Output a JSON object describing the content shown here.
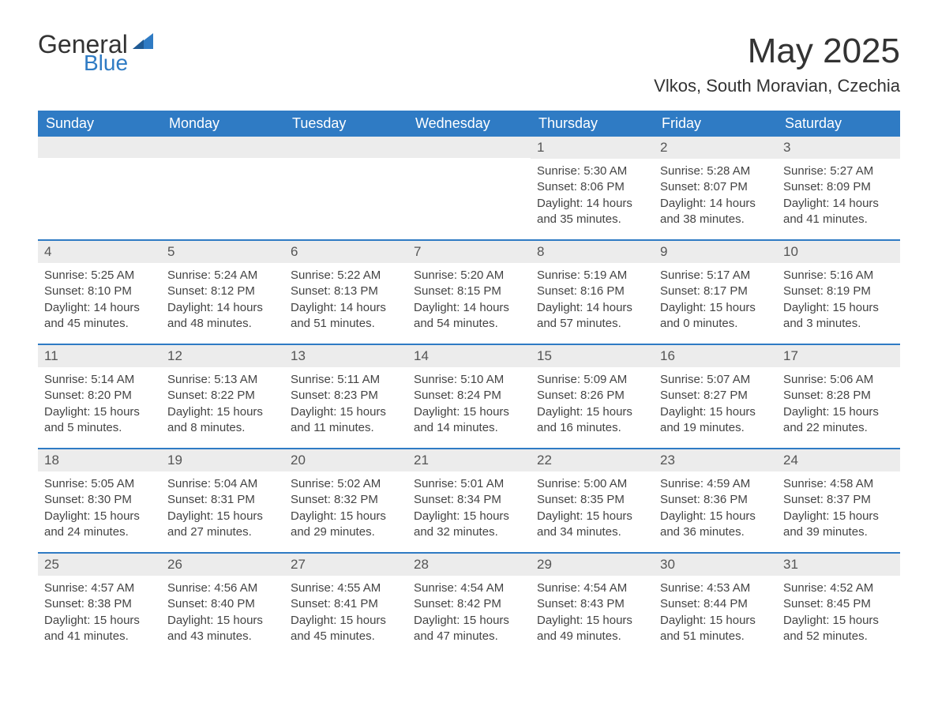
{
  "brand": {
    "word1": "General",
    "word2": "Blue",
    "color_primary": "#2f7bc4",
    "color_text": "#333333"
  },
  "title": "May 2025",
  "location": "Vlkos, South Moravian, Czechia",
  "colors": {
    "header_bg": "#2f7bc4",
    "header_text": "#ffffff",
    "daynum_bg": "#ececec",
    "border": "#2f7bc4",
    "body_text": "#444444",
    "background": "#ffffff"
  },
  "fonts": {
    "title_size_pt": 44,
    "location_size_pt": 22,
    "dayheader_size_pt": 18,
    "daynum_size_pt": 17,
    "detail_size_pt": 15
  },
  "day_names": [
    "Sunday",
    "Monday",
    "Tuesday",
    "Wednesday",
    "Thursday",
    "Friday",
    "Saturday"
  ],
  "weeks": [
    [
      null,
      null,
      null,
      null,
      {
        "n": "1",
        "sunrise": "Sunrise: 5:30 AM",
        "sunset": "Sunset: 8:06 PM",
        "day1": "Daylight: 14 hours",
        "day2": "and 35 minutes."
      },
      {
        "n": "2",
        "sunrise": "Sunrise: 5:28 AM",
        "sunset": "Sunset: 8:07 PM",
        "day1": "Daylight: 14 hours",
        "day2": "and 38 minutes."
      },
      {
        "n": "3",
        "sunrise": "Sunrise: 5:27 AM",
        "sunset": "Sunset: 8:09 PM",
        "day1": "Daylight: 14 hours",
        "day2": "and 41 minutes."
      }
    ],
    [
      {
        "n": "4",
        "sunrise": "Sunrise: 5:25 AM",
        "sunset": "Sunset: 8:10 PM",
        "day1": "Daylight: 14 hours",
        "day2": "and 45 minutes."
      },
      {
        "n": "5",
        "sunrise": "Sunrise: 5:24 AM",
        "sunset": "Sunset: 8:12 PM",
        "day1": "Daylight: 14 hours",
        "day2": "and 48 minutes."
      },
      {
        "n": "6",
        "sunrise": "Sunrise: 5:22 AM",
        "sunset": "Sunset: 8:13 PM",
        "day1": "Daylight: 14 hours",
        "day2": "and 51 minutes."
      },
      {
        "n": "7",
        "sunrise": "Sunrise: 5:20 AM",
        "sunset": "Sunset: 8:15 PM",
        "day1": "Daylight: 14 hours",
        "day2": "and 54 minutes."
      },
      {
        "n": "8",
        "sunrise": "Sunrise: 5:19 AM",
        "sunset": "Sunset: 8:16 PM",
        "day1": "Daylight: 14 hours",
        "day2": "and 57 minutes."
      },
      {
        "n": "9",
        "sunrise": "Sunrise: 5:17 AM",
        "sunset": "Sunset: 8:17 PM",
        "day1": "Daylight: 15 hours",
        "day2": "and 0 minutes."
      },
      {
        "n": "10",
        "sunrise": "Sunrise: 5:16 AM",
        "sunset": "Sunset: 8:19 PM",
        "day1": "Daylight: 15 hours",
        "day2": "and 3 minutes."
      }
    ],
    [
      {
        "n": "11",
        "sunrise": "Sunrise: 5:14 AM",
        "sunset": "Sunset: 8:20 PM",
        "day1": "Daylight: 15 hours",
        "day2": "and 5 minutes."
      },
      {
        "n": "12",
        "sunrise": "Sunrise: 5:13 AM",
        "sunset": "Sunset: 8:22 PM",
        "day1": "Daylight: 15 hours",
        "day2": "and 8 minutes."
      },
      {
        "n": "13",
        "sunrise": "Sunrise: 5:11 AM",
        "sunset": "Sunset: 8:23 PM",
        "day1": "Daylight: 15 hours",
        "day2": "and 11 minutes."
      },
      {
        "n": "14",
        "sunrise": "Sunrise: 5:10 AM",
        "sunset": "Sunset: 8:24 PM",
        "day1": "Daylight: 15 hours",
        "day2": "and 14 minutes."
      },
      {
        "n": "15",
        "sunrise": "Sunrise: 5:09 AM",
        "sunset": "Sunset: 8:26 PM",
        "day1": "Daylight: 15 hours",
        "day2": "and 16 minutes."
      },
      {
        "n": "16",
        "sunrise": "Sunrise: 5:07 AM",
        "sunset": "Sunset: 8:27 PM",
        "day1": "Daylight: 15 hours",
        "day2": "and 19 minutes."
      },
      {
        "n": "17",
        "sunrise": "Sunrise: 5:06 AM",
        "sunset": "Sunset: 8:28 PM",
        "day1": "Daylight: 15 hours",
        "day2": "and 22 minutes."
      }
    ],
    [
      {
        "n": "18",
        "sunrise": "Sunrise: 5:05 AM",
        "sunset": "Sunset: 8:30 PM",
        "day1": "Daylight: 15 hours",
        "day2": "and 24 minutes."
      },
      {
        "n": "19",
        "sunrise": "Sunrise: 5:04 AM",
        "sunset": "Sunset: 8:31 PM",
        "day1": "Daylight: 15 hours",
        "day2": "and 27 minutes."
      },
      {
        "n": "20",
        "sunrise": "Sunrise: 5:02 AM",
        "sunset": "Sunset: 8:32 PM",
        "day1": "Daylight: 15 hours",
        "day2": "and 29 minutes."
      },
      {
        "n": "21",
        "sunrise": "Sunrise: 5:01 AM",
        "sunset": "Sunset: 8:34 PM",
        "day1": "Daylight: 15 hours",
        "day2": "and 32 minutes."
      },
      {
        "n": "22",
        "sunrise": "Sunrise: 5:00 AM",
        "sunset": "Sunset: 8:35 PM",
        "day1": "Daylight: 15 hours",
        "day2": "and 34 minutes."
      },
      {
        "n": "23",
        "sunrise": "Sunrise: 4:59 AM",
        "sunset": "Sunset: 8:36 PM",
        "day1": "Daylight: 15 hours",
        "day2": "and 36 minutes."
      },
      {
        "n": "24",
        "sunrise": "Sunrise: 4:58 AM",
        "sunset": "Sunset: 8:37 PM",
        "day1": "Daylight: 15 hours",
        "day2": "and 39 minutes."
      }
    ],
    [
      {
        "n": "25",
        "sunrise": "Sunrise: 4:57 AM",
        "sunset": "Sunset: 8:38 PM",
        "day1": "Daylight: 15 hours",
        "day2": "and 41 minutes."
      },
      {
        "n": "26",
        "sunrise": "Sunrise: 4:56 AM",
        "sunset": "Sunset: 8:40 PM",
        "day1": "Daylight: 15 hours",
        "day2": "and 43 minutes."
      },
      {
        "n": "27",
        "sunrise": "Sunrise: 4:55 AM",
        "sunset": "Sunset: 8:41 PM",
        "day1": "Daylight: 15 hours",
        "day2": "and 45 minutes."
      },
      {
        "n": "28",
        "sunrise": "Sunrise: 4:54 AM",
        "sunset": "Sunset: 8:42 PM",
        "day1": "Daylight: 15 hours",
        "day2": "and 47 minutes."
      },
      {
        "n": "29",
        "sunrise": "Sunrise: 4:54 AM",
        "sunset": "Sunset: 8:43 PM",
        "day1": "Daylight: 15 hours",
        "day2": "and 49 minutes."
      },
      {
        "n": "30",
        "sunrise": "Sunrise: 4:53 AM",
        "sunset": "Sunset: 8:44 PM",
        "day1": "Daylight: 15 hours",
        "day2": "and 51 minutes."
      },
      {
        "n": "31",
        "sunrise": "Sunrise: 4:52 AM",
        "sunset": "Sunset: 8:45 PM",
        "day1": "Daylight: 15 hours",
        "day2": "and 52 minutes."
      }
    ]
  ]
}
